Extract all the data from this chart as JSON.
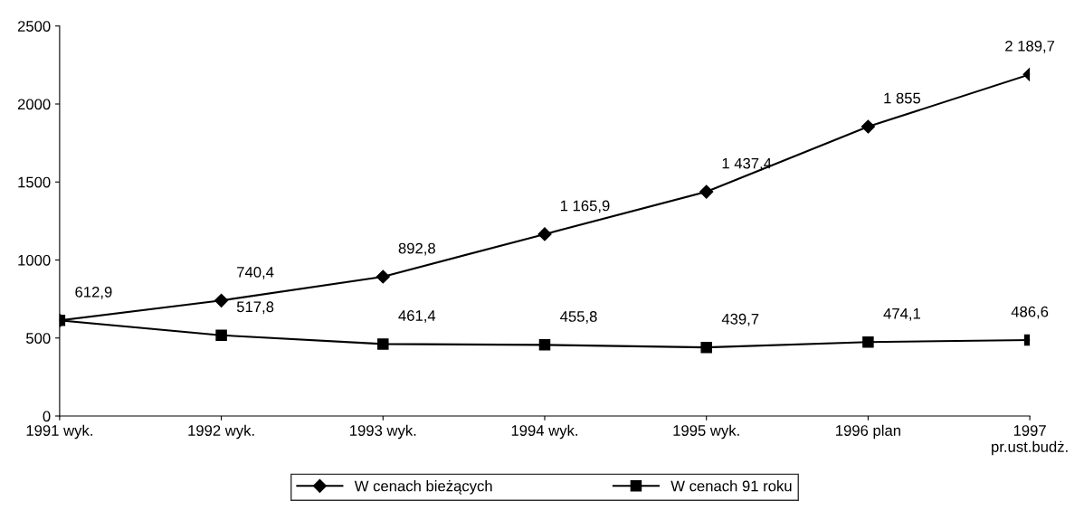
{
  "chart_data": {
    "type": "line",
    "categories": [
      "1991 wyk.",
      "1992 wyk.",
      "1993 wyk.",
      "1994 wyk.",
      "1995 wyk.",
      "1996 plan",
      "1997\npr.ust.budż."
    ],
    "series": [
      {
        "name": "W cenach bieżących",
        "color": "#000000",
        "marker": "diamond",
        "values": [
          612.9,
          740.4,
          892.8,
          1165.9,
          1437.4,
          1855,
          2189.7
        ],
        "value_labels": [
          "612,9",
          "740,4",
          "892,8",
          "1 165,9",
          "1 437,4",
          "1 855",
          "2 189,7"
        ]
      },
      {
        "name": "W cenach 91 roku",
        "color": "#000000",
        "marker": "square",
        "values": [
          612.9,
          517.8,
          461.4,
          455.8,
          439.7,
          474.1,
          486.6
        ],
        "value_labels": [
          null,
          "517,8",
          "461,4",
          "455,8",
          "439,7",
          "474,1",
          "486,6"
        ]
      }
    ],
    "ylim": [
      0,
      2500
    ],
    "yticks": [
      0,
      500,
      1000,
      1500,
      2000,
      2500
    ],
    "grid": false,
    "legend": "bottom",
    "line_style": "solid"
  }
}
